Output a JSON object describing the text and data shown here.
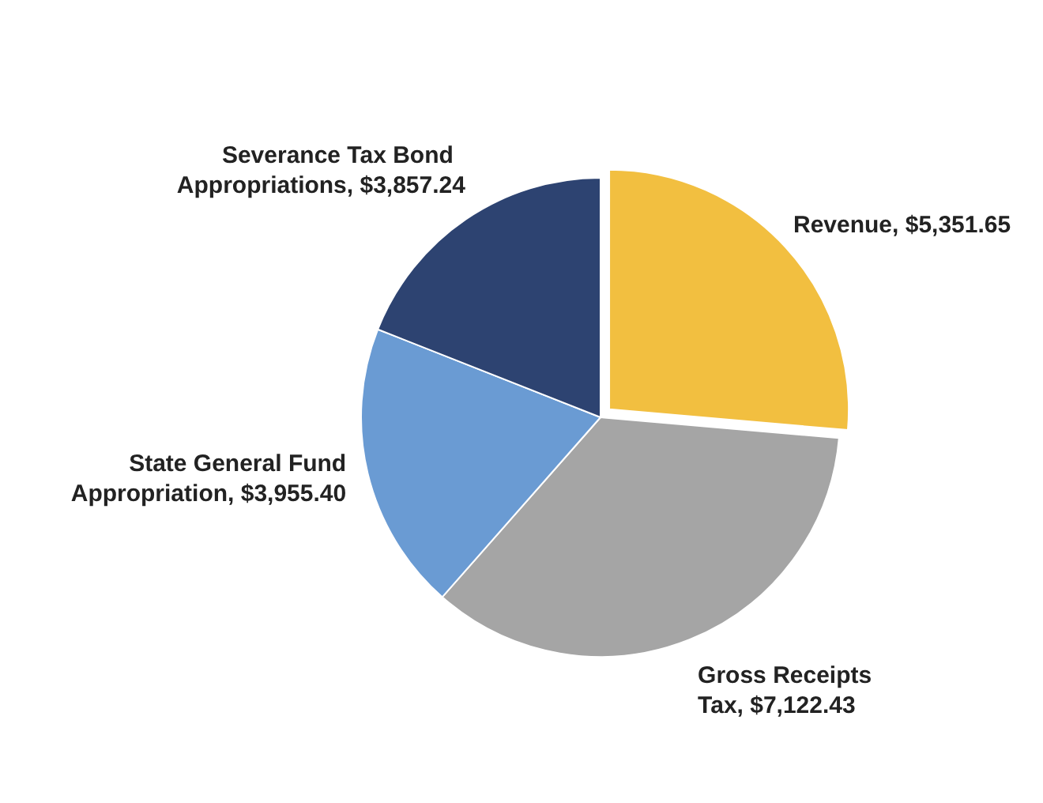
{
  "chart_data": {
    "type": "pie",
    "categories": [
      "Revenue",
      "Gross Receipts Tax",
      "State General Fund Appropriation",
      "Severance Tax Bond Appropriations"
    ],
    "values": [
      5351.65,
      7122.43,
      3955.4,
      3857.24
    ],
    "value_labels": [
      "$5,351.65",
      "$7,122.43",
      "$3,955.40",
      "$3,857.24"
    ],
    "colors": [
      "#f2bf40",
      "#a5a5a5",
      "#6a9bd3",
      "#2d4371"
    ],
    "legend": false
  }
}
